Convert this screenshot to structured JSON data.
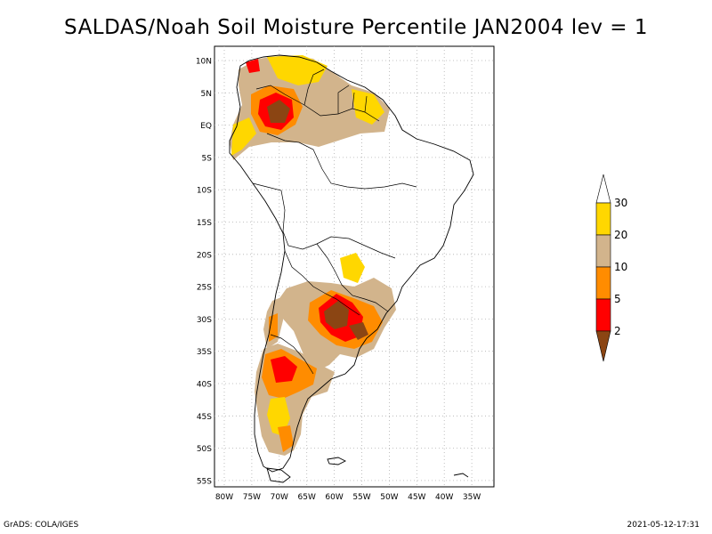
{
  "title": "SALDAS/Noah Soil Moisture Percentile JAN2004 lev = 1",
  "map": {
    "lat_labels": [
      "10N",
      "5N",
      "EQ",
      "5S",
      "10S",
      "15S",
      "20S",
      "25S",
      "30S",
      "35S",
      "40S",
      "45S",
      "50S",
      "55S"
    ],
    "lon_labels": [
      "80W",
      "75W",
      "70W",
      "65W",
      "60W",
      "55W",
      "50W",
      "45W",
      "40W",
      "35W"
    ],
    "grid": "dotted"
  },
  "legend": {
    "labels": [
      "30",
      "20",
      "10",
      "5",
      "2"
    ],
    "colors": {
      "above_30": "#ffffff",
      "20_30": "#ffd700",
      "10_20": "#d2b48c",
      "5_10": "#ff8c00",
      "2_5": "#ff0000",
      "below_2": "#8b4513"
    }
  },
  "footer": {
    "left": "GrADS: COLA/IGES",
    "right": "2021-05-12-17:31"
  }
}
